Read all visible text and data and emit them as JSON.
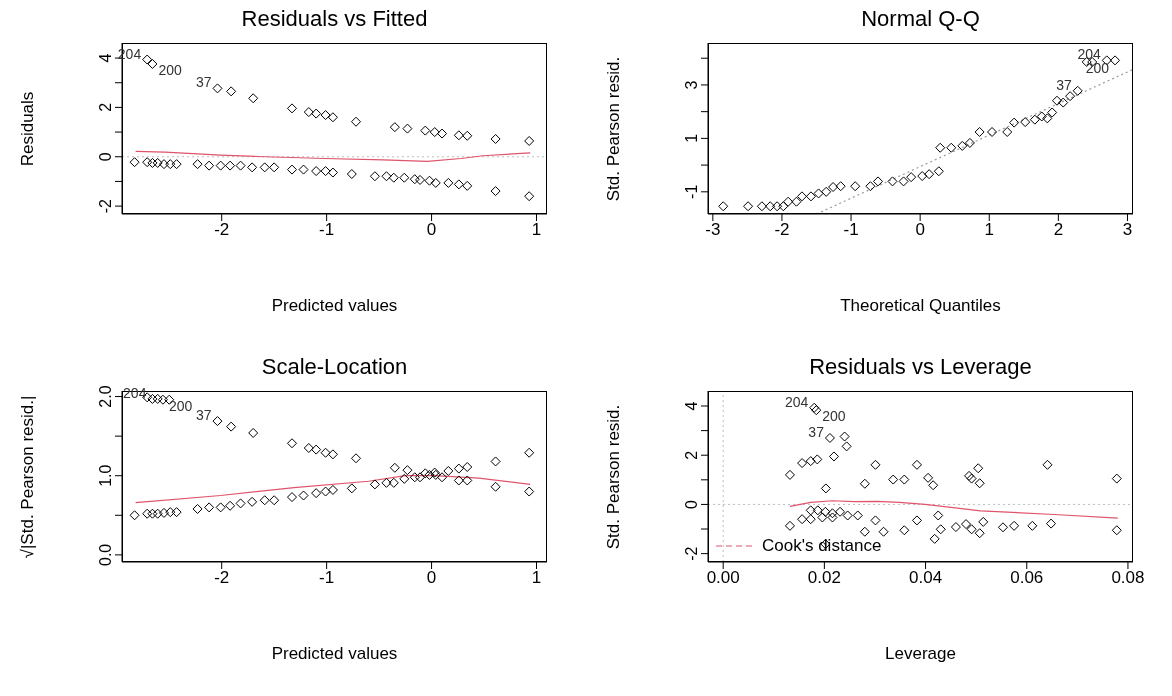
{
  "chart_data": [
    {
      "type": "scatter",
      "title": "Residuals vs Fitted",
      "xlabel": "Predicted values",
      "ylabel": "Residuals",
      "xlim": [
        -2.95,
        1.1
      ],
      "xticks": [
        -2,
        -1,
        0,
        1
      ],
      "ylim": [
        -2.32,
        4.61
      ],
      "yticks": [
        -2,
        {
          "value": -1,
          "label": null
        },
        0,
        {
          "value": 1,
          "label": null
        },
        2,
        {
          "value": 3,
          "label": null
        },
        4
      ],
      "series": [
        {
          "marker": "diamond",
          "color": "#000000",
          "x": [
            -2.71,
            -2.66,
            -2.04,
            -1.91,
            -1.7,
            -1.33,
            -1.17,
            -1.1,
            -1.01,
            -0.94,
            -0.72,
            -0.35,
            -0.23,
            -0.06,
            0.03,
            0.1,
            0.26,
            0.34,
            0.61,
            0.93,
            -2.83,
            -2.71,
            -2.66,
            -2.61,
            -2.55,
            -2.49,
            -2.43,
            -2.23,
            -2.12,
            -2.01,
            -1.92,
            -1.82,
            -1.71,
            -1.59,
            -1.5,
            -1.33,
            -1.22,
            -1.1,
            -1.01,
            -0.94,
            -0.76,
            -0.54,
            -0.43,
            -0.36,
            -0.26,
            -0.16,
            -0.11,
            -0.02,
            0.04,
            0.16,
            0.26,
            0.34,
            0.61,
            0.93
          ],
          "values": [
            3.94,
            3.76,
            2.77,
            2.65,
            2.37,
            1.96,
            1.81,
            1.75,
            1.69,
            1.6,
            1.42,
            1.2,
            1.14,
            1.06,
            1.0,
            0.94,
            0.87,
            0.85,
            0.72,
            0.64,
            -0.22,
            -0.22,
            -0.25,
            -0.25,
            -0.3,
            -0.3,
            -0.3,
            -0.3,
            -0.36,
            -0.36,
            -0.36,
            -0.36,
            -0.43,
            -0.43,
            -0.43,
            -0.52,
            -0.52,
            -0.58,
            -0.58,
            -0.64,
            -0.7,
            -0.79,
            -0.79,
            -0.85,
            -0.85,
            -0.91,
            -0.94,
            -0.97,
            -1.06,
            -1.06,
            -1.12,
            -1.18,
            -1.39,
            -1.6
          ]
        },
        {
          "type": "line",
          "color": "#df536b",
          "x": [
            -2.82,
            -2.54,
            -2.01,
            -1.66,
            -1.02,
            -0.46,
            -0.04,
            0.28,
            0.49,
            0.94
          ],
          "values": [
            0.22,
            0.19,
            0.07,
            0.01,
            -0.07,
            -0.13,
            -0.19,
            -0.07,
            0.04,
            0.16
          ]
        }
      ],
      "ref_lines": [
        {
          "axis": "y",
          "value": 0,
          "color": "#bebebe",
          "line_style": "dotted"
        }
      ],
      "annotations": [
        {
          "text": "204",
          "x": -2.71,
          "y": 3.94
        },
        {
          "text": "200",
          "x": -2.66,
          "y": 3.76
        },
        {
          "text": "37",
          "x": -2.04,
          "y": 2.77
        }
      ]
    },
    {
      "type": "scatter",
      "title": "Normal Q-Q",
      "xlabel": "Theoretical Quantiles",
      "ylabel": "Std. Pearson resid.",
      "xlim": [
        -3.07,
        3.08
      ],
      "xticks": [
        -3,
        -2,
        -1,
        0,
        1,
        2,
        3
      ],
      "ylim": [
        -1.83,
        4.57
      ],
      "yticks": [
        -1,
        {
          "value": 0,
          "label": null
        },
        1,
        {
          "value": 2,
          "label": null
        },
        3,
        {
          "value": 4,
          "label": null
        }
      ],
      "series": [
        {
          "marker": "diamond",
          "color": "#000000",
          "x": [
            -2.85,
            -2.49,
            -2.29,
            -2.17,
            -2.07,
            -1.98,
            -1.91,
            -1.79,
            -1.71,
            -1.58,
            -1.47,
            -1.36,
            -1.26,
            -1.15,
            -0.94,
            -0.72,
            -0.61,
            -0.4,
            -0.24,
            -0.13,
            0.03,
            0.13,
            0.27,
            0.29,
            0.45,
            0.61,
            0.72,
            0.86,
            1.04,
            1.26,
            1.36,
            1.52,
            1.66,
            1.76,
            1.84,
            1.91,
            1.98,
            2.07,
            2.17,
            2.28,
            2.41,
            2.49,
            2.7,
            2.82
          ],
          "values": [
            -1.54,
            -1.54,
            -1.54,
            -1.54,
            -1.54,
            -1.54,
            -1.37,
            -1.37,
            -1.17,
            -1.17,
            -1.06,
            -1.0,
            -0.82,
            -0.79,
            -0.79,
            -0.79,
            -0.61,
            -0.61,
            -0.61,
            -0.45,
            -0.41,
            -0.34,
            -0.23,
            0.65,
            0.65,
            0.72,
            0.83,
            1.24,
            1.24,
            1.24,
            1.59,
            1.61,
            1.7,
            1.82,
            1.75,
            1.97,
            2.41,
            2.34,
            2.58,
            2.78,
            3.86,
            3.86,
            3.92,
            3.92
          ]
        },
        {
          "type": "line",
          "color": "#999999",
          "line_style": "dotted",
          "x": [
            -1.5,
            3.08
          ],
          "values": [
            -1.83,
            3.58
          ]
        }
      ],
      "annotations": [
        {
          "text": "204",
          "x": 2.7,
          "y": 3.92
        },
        {
          "text": "200",
          "x": 2.82,
          "y": 3.86
        },
        {
          "text": "37",
          "x": 2.28,
          "y": 2.78
        }
      ]
    },
    {
      "type": "scatter",
      "title": "Scale-Location",
      "xlabel": "Predicted values",
      "ylabel": "√|Std. Pearson resid.|",
      "xlim": [
        -2.95,
        1.1
      ],
      "xticks": [
        -2,
        -1,
        0,
        1
      ],
      "ylim": [
        -0.09,
        2.07
      ],
      "yticks": [
        {
          "value": 0,
          "label": "0.0"
        },
        {
          "value": 0.5,
          "label": null
        },
        {
          "value": 1,
          "label": "1.0"
        },
        {
          "value": 1.5,
          "label": null
        },
        {
          "value": 2,
          "label": "2.0"
        }
      ],
      "series": [
        {
          "marker": "diamond",
          "color": "#000000",
          "x": [
            -2.71,
            -2.66,
            -2.61,
            -2.56,
            -2.5,
            -2.04,
            -1.91,
            -1.7,
            -1.33,
            -1.17,
            -1.1,
            -1.01,
            -0.94,
            -0.72,
            -0.35,
            -0.23,
            -0.06,
            0.03,
            0.16,
            0.26,
            0.34,
            0.61,
            0.93,
            -2.83,
            -2.71,
            -2.66,
            -2.61,
            -2.55,
            -2.49,
            -2.43,
            -2.23,
            -2.12,
            -2.01,
            -1.92,
            -1.82,
            -1.71,
            -1.59,
            -1.5,
            -1.33,
            -1.22,
            -1.1,
            -1.01,
            -0.94,
            -0.76,
            -0.54,
            -0.43,
            -0.36,
            -0.26,
            -0.16,
            -0.11,
            -0.02,
            0.04,
            0.1,
            0.26,
            0.34,
            0.61,
            0.93
          ],
          "values": [
            1.99,
            1.97,
            1.97,
            1.96,
            1.96,
            1.69,
            1.62,
            1.54,
            1.41,
            1.35,
            1.33,
            1.29,
            1.27,
            1.22,
            1.1,
            1.07,
            1.03,
            1.04,
            1.06,
            1.09,
            1.11,
            1.18,
            1.29,
            0.5,
            0.52,
            0.52,
            0.52,
            0.53,
            0.54,
            0.54,
            0.58,
            0.6,
            0.6,
            0.62,
            0.65,
            0.67,
            0.69,
            0.69,
            0.73,
            0.75,
            0.78,
            0.8,
            0.82,
            0.84,
            0.89,
            0.91,
            0.91,
            0.96,
            0.98,
            0.98,
            1.01,
            1.01,
            0.98,
            0.94,
            0.94,
            0.86,
            0.8
          ]
        },
        {
          "type": "line",
          "color": "#df536b",
          "x": [
            -2.82,
            -2.01,
            -1.31,
            -0.6,
            -0.25,
            0.03,
            0.45,
            0.94
          ],
          "values": [
            0.66,
            0.75,
            0.85,
            0.93,
            1.0,
            1.0,
            0.97,
            0.89
          ]
        }
      ],
      "annotations": [
        {
          "text": "204",
          "x": -2.66,
          "y": 1.97
        },
        {
          "text": "200",
          "x": -2.56,
          "y": 1.96
        },
        {
          "text": "37",
          "x": -2.04,
          "y": 1.69
        }
      ]
    },
    {
      "type": "scatter",
      "title": "Residuals vs Leverage",
      "xlabel": "Leverage",
      "ylabel": "Std. Pearson resid.",
      "legend": "bottom left",
      "xlim": [
        -0.003,
        0.081
      ],
      "xticks": [
        {
          "value": 0,
          "label": "0.00"
        },
        {
          "value": 0.02,
          "label": "0.02"
        },
        {
          "value": 0.04,
          "label": "0.04"
        },
        {
          "value": 0.06,
          "label": "0.06"
        },
        {
          "value": 0.08,
          "label": "0.08"
        }
      ],
      "ylim": [
        -2.34,
        4.61
      ],
      "yticks": [
        -2,
        {
          "value": -1,
          "label": null
        },
        0,
        {
          "value": 1,
          "label": null
        },
        2,
        {
          "value": 3,
          "label": null
        },
        4
      ],
      "series": [
        {
          "marker": "diamond",
          "color": "#000000",
          "x": [
            0.018,
            0.0184,
            0.0211,
            0.024,
            0.0244,
            0.0219,
            0.0132,
            0.0156,
            0.0173,
            0.0186,
            0.0301,
            0.0203,
            0.028,
            0.0336,
            0.0358,
            0.0383,
            0.0405,
            0.0415,
            0.0486,
            0.0491,
            0.0504,
            0.0507,
            0.0641,
            0.0778,
            0.0173,
            0.0187,
            0.0202,
            0.0216,
            0.0231,
            0.0246,
            0.0266,
            0.0132,
            0.0156,
            0.0173,
            0.0196,
            0.0216,
            0.0301,
            0.028,
            0.0317,
            0.0358,
            0.0383,
            0.0425,
            0.0418,
            0.043,
            0.046,
            0.048,
            0.0491,
            0.0507,
            0.0514,
            0.0553,
            0.0575,
            0.0611,
            0.0648,
            0.0778,
            0.0202
          ],
          "values": [
            3.93,
            3.83,
            2.7,
            2.76,
            2.36,
            1.95,
            1.2,
            1.68,
            1.76,
            1.83,
            1.61,
            0.65,
            0.84,
            1.01,
            1.01,
            1.61,
            1.08,
            0.78,
            1.16,
            1.05,
            1.47,
            0.86,
            1.61,
            1.05,
            -0.24,
            -0.24,
            -0.3,
            -0.36,
            -0.3,
            -0.45,
            -0.45,
            -0.87,
            -0.6,
            -0.6,
            -0.53,
            -0.53,
            -0.65,
            -1.11,
            -1.11,
            -1.05,
            -0.65,
            -0.45,
            -1.4,
            -1.01,
            -0.92,
            -0.8,
            -1.01,
            -1.17,
            -0.71,
            -0.93,
            -0.87,
            -0.87,
            -0.78,
            -1.05,
            -1.61
          ]
        },
        {
          "type": "line",
          "color": "#df536b",
          "x": [
            0.0132,
            0.0173,
            0.0216,
            0.026,
            0.0304,
            0.0348,
            0.0399,
            0.0509,
            0.0655,
            0.078
          ],
          "values": [
            -0.08,
            0.08,
            0.15,
            0.11,
            0.12,
            0.08,
            0.0,
            -0.26,
            -0.41,
            -0.56
          ]
        },
        {
          "type": "line",
          "name": "Cook's distance",
          "color": "#df536b",
          "line_style": "dashed"
        }
      ],
      "ref_lines": [
        {
          "axis": "y",
          "value": 0,
          "color": "#bebebe",
          "line_style": "dotted"
        },
        {
          "axis": "x",
          "value": 0,
          "color": "#bebebe",
          "line_style": "dotted"
        }
      ],
      "annotations": [
        {
          "text": "204",
          "x": 0.018,
          "y": 3.93
        },
        {
          "text": "200",
          "x": 0.0184,
          "y": 3.83
        },
        {
          "text": "37",
          "x": 0.0211,
          "y": 2.7
        }
      ]
    }
  ]
}
